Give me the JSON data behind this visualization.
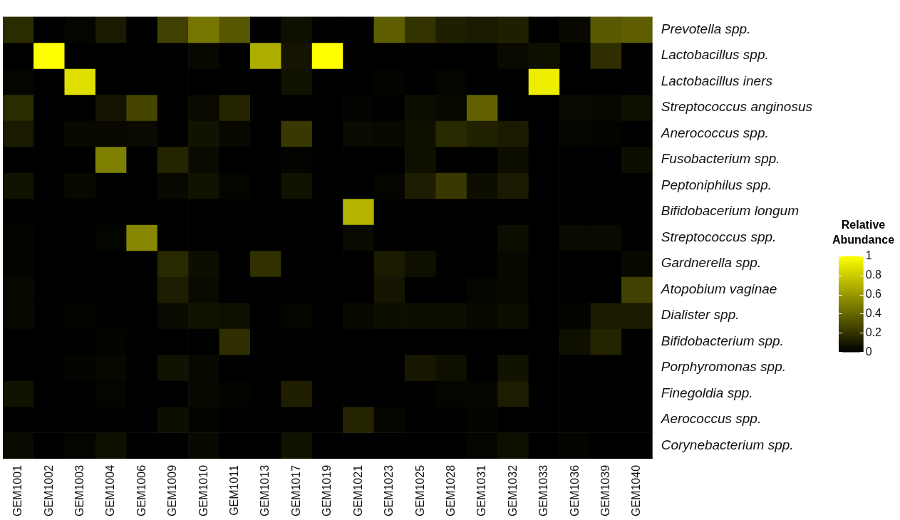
{
  "chart_data": {
    "type": "heatmap",
    "clabel": "Relative Abundance",
    "clim": [
      0,
      1
    ],
    "cticks": [
      0,
      0.2,
      0.4,
      0.6,
      0.8,
      1
    ],
    "categories": [
      "GEM1001",
      "GEM1002",
      "GEM1003",
      "GEM1004",
      "GEM1006",
      "GEM1009",
      "GEM1010",
      "GEM1011",
      "GEM1013",
      "GEM1017",
      "GEM1019",
      "GEM1021",
      "GEM1023",
      "GEM1025",
      "GEM1028",
      "GEM1031",
      "GEM1032",
      "GEM1033",
      "GEM1036",
      "GEM1039",
      "GEM1040"
    ],
    "y_categories": [
      "Prevotella spp.",
      "Lactobacillus spp.",
      "Lactobacillus iners",
      "Streptococcus anginosus",
      "Anerococcus spp.",
      "Fusobacterium spp.",
      "Peptoniphilus spp.",
      "Bifidobacerium longum",
      "Streptococcus spp.",
      "Gardnerella spp.",
      "Atopobium vaginae",
      "Dialister spp.",
      "Bifidobacterium spp.",
      "Porphyromonas spp.",
      "Finegoldia spp.",
      "Aerococcus spp.",
      "Corynebacterium spp."
    ],
    "cells": [
      [
        0.17,
        0,
        0.02,
        0.1,
        0,
        0.25,
        0.46,
        0.34,
        0,
        0.06,
        0,
        0,
        0.37,
        0.2,
        0.12,
        0.1,
        0.12,
        0,
        0.03,
        0.35,
        0.37
      ],
      [
        0,
        1,
        0,
        0,
        0,
        0,
        0.03,
        0,
        0.68,
        0.08,
        1,
        0,
        0,
        0,
        0,
        0,
        0.04,
        0.06,
        0,
        0.18,
        0
      ],
      [
        0.02,
        0,
        0.88,
        0,
        0,
        0,
        0,
        0,
        0,
        0.07,
        0,
        0,
        0.01,
        0,
        0.02,
        0,
        0,
        0.93,
        0,
        0,
        0
      ],
      [
        0.17,
        0,
        0,
        0.08,
        0.27,
        0,
        0.04,
        0.14,
        0,
        0,
        0,
        0.01,
        0,
        0.05,
        0.03,
        0.38,
        0,
        0,
        0.04,
        0.03,
        0.06
      ],
      [
        0.1,
        0,
        0.03,
        0.03,
        0.04,
        0,
        0.07,
        0.03,
        0,
        0.22,
        0,
        0.04,
        0.03,
        0.06,
        0.16,
        0.13,
        0.1,
        0,
        0.02,
        0.01,
        0
      ],
      [
        0,
        0,
        0,
        0.5,
        0,
        0.14,
        0.04,
        0,
        0,
        0.01,
        0,
        0,
        0,
        0.06,
        0,
        0,
        0.05,
        0,
        0,
        0,
        0.05
      ],
      [
        0.07,
        0,
        0.03,
        0,
        0,
        0.03,
        0.07,
        0.02,
        0,
        0.07,
        0,
        0,
        0.02,
        0.11,
        0.22,
        0.05,
        0.1,
        0,
        0,
        0,
        0
      ],
      [
        0,
        0,
        0,
        0,
        0,
        0,
        0,
        0,
        0,
        0,
        0,
        0.7,
        0,
        0,
        0,
        0,
        0,
        0,
        0,
        0,
        0
      ],
      [
        0.01,
        0,
        0,
        0.02,
        0.53,
        0,
        0,
        0,
        0,
        0,
        0,
        0.04,
        0,
        0,
        0,
        0,
        0.05,
        0,
        0.04,
        0.04,
        0
      ],
      [
        0.01,
        0,
        0,
        0,
        0,
        0.16,
        0.05,
        0,
        0.19,
        0,
        0,
        0,
        0.1,
        0.06,
        0,
        0,
        0.03,
        0,
        0,
        0,
        0.03
      ],
      [
        0.03,
        0,
        0,
        0,
        0,
        0.11,
        0.04,
        0,
        0,
        0,
        0,
        0,
        0.08,
        0,
        0,
        0.02,
        0.03,
        0,
        0,
        0,
        0.25
      ],
      [
        0.03,
        0,
        0.01,
        0,
        0,
        0.04,
        0.07,
        0.06,
        0,
        0.02,
        0,
        0.03,
        0.05,
        0.05,
        0.05,
        0.03,
        0.05,
        0,
        0.01,
        0.1,
        0.1
      ],
      [
        0,
        0,
        0,
        0.01,
        0,
        0,
        0,
        0.18,
        0,
        0,
        0,
        0,
        0,
        0,
        0,
        0,
        0,
        0,
        0.06,
        0.14,
        0
      ],
      [
        0,
        0,
        0.01,
        0.03,
        0,
        0.07,
        0.03,
        0,
        0,
        0,
        0,
        0,
        0,
        0.09,
        0.06,
        0,
        0.07,
        0,
        0,
        0,
        0
      ],
      [
        0.07,
        0,
        0,
        0.02,
        0,
        0,
        0.03,
        0.01,
        0,
        0.12,
        0,
        0,
        0,
        0,
        0.02,
        0.02,
        0.11,
        0,
        0,
        0,
        0
      ],
      [
        0,
        0,
        0,
        0,
        0,
        0.05,
        0.01,
        0,
        0,
        0,
        0,
        0.14,
        0.02,
        0,
        0,
        0.01,
        0,
        0,
        0,
        0,
        0
      ],
      [
        0.04,
        0,
        0.02,
        0.06,
        0,
        0,
        0.03,
        0,
        0,
        0.07,
        0,
        0,
        0,
        0,
        0,
        0.02,
        0.06,
        0,
        0.01,
        0,
        0
      ]
    ]
  }
}
